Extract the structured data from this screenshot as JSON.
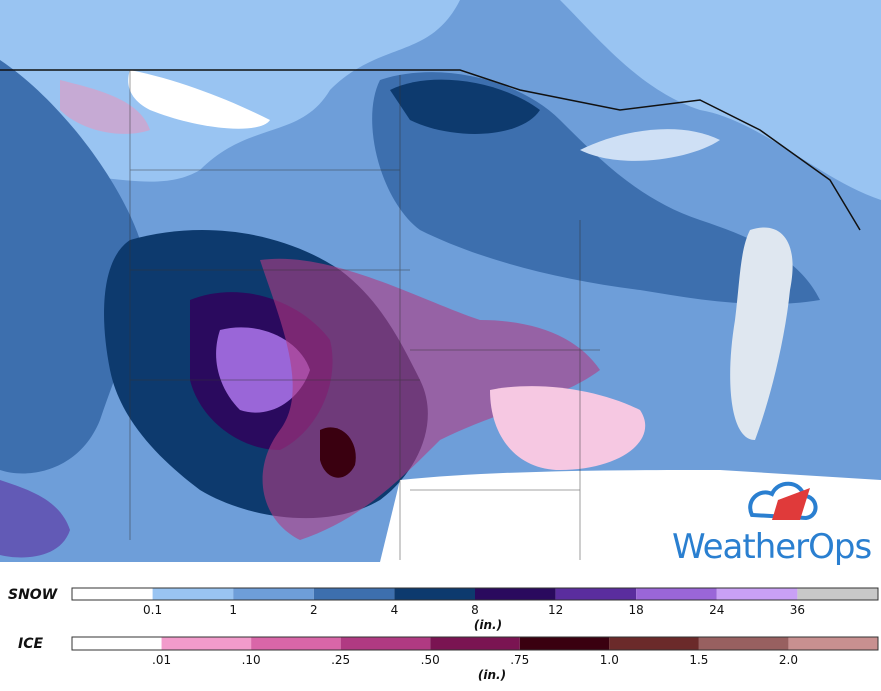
{
  "map": {
    "logo": "WeatherOps"
  },
  "legend": [
    {
      "title": "SNOW",
      "unit": "(in.)",
      "colors": [
        "#ffffff",
        "#99c4f2",
        "#6e9ed9",
        "#3d6fae",
        "#0d3a6e",
        "#2a0a5e",
        "#5a2d9e",
        "#9a66d8",
        "#c9a0f5",
        "#c8c8c8"
      ],
      "labels": [
        "0.1",
        "1",
        "2",
        "4",
        "8",
        "12",
        "18",
        "24",
        "36"
      ]
    },
    {
      "title": "ICE",
      "unit": "(in.)",
      "colors": [
        "#ffffff",
        "#f29bcb",
        "#d966a8",
        "#b03a82",
        "#7a1452",
        "#3a0010",
        "#6b2a2a",
        "#986060",
        "#c89090"
      ],
      "labels": [
        ".01",
        ".10",
        ".25",
        ".50",
        ".75",
        "1.0",
        "1.5",
        "2.0"
      ]
    }
  ]
}
